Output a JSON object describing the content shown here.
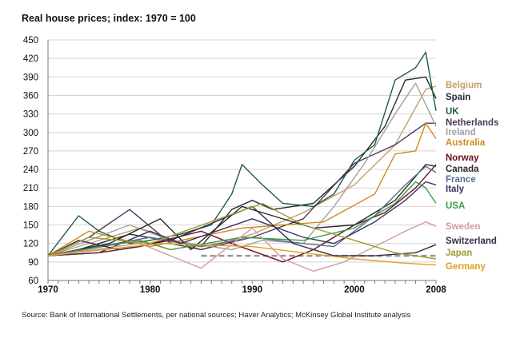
{
  "chart_data": {
    "type": "line",
    "title": "Real house prices; index: 1970 = 100",
    "source": "Source: Bank of International Settlements, per national sources; Haver Analytics; McKinsey Global Institute analysis",
    "xlim": [
      1970,
      2008
    ],
    "ylim": [
      60,
      450
    ],
    "yticks": [
      60,
      90,
      120,
      150,
      180,
      210,
      240,
      270,
      300,
      330,
      360,
      390,
      420,
      450
    ],
    "xticks": [
      1970,
      1980,
      1990,
      2000,
      2008
    ],
    "grid": true,
    "reference_line": {
      "value": 100,
      "style": "dashed",
      "color": "#999999"
    },
    "legend_placement": "right",
    "series": [
      {
        "name": "Belgium",
        "color": "#c4a06a",
        "points": [
          [
            1970,
            100
          ],
          [
            1979,
            145
          ],
          [
            1985,
            110
          ],
          [
            1990,
            135
          ],
          [
            1995,
            170
          ],
          [
            2000,
            215
          ],
          [
            2004,
            280
          ],
          [
            2007,
            370
          ],
          [
            2008,
            375
          ]
        ]
      },
      {
        "name": "Spain",
        "color": "#1f2d3a",
        "points": [
          [
            1970,
            100
          ],
          [
            1973,
            110
          ],
          [
            1978,
            135
          ],
          [
            1985,
            115
          ],
          [
            1988,
            175
          ],
          [
            1990,
            190
          ],
          [
            1992,
            175
          ],
          [
            1996,
            185
          ],
          [
            2000,
            245
          ],
          [
            2003,
            310
          ],
          [
            2005,
            385
          ],
          [
            2007,
            390
          ],
          [
            2008,
            355
          ]
        ]
      },
      {
        "name": "UK",
        "color": "#1e5c45",
        "points": [
          [
            1970,
            100
          ],
          [
            1973,
            165
          ],
          [
            1975,
            140
          ],
          [
            1978,
            120
          ],
          [
            1980,
            125
          ],
          [
            1983,
            135
          ],
          [
            1986,
            150
          ],
          [
            1988,
            200
          ],
          [
            1989,
            248
          ],
          [
            1991,
            215
          ],
          [
            1993,
            185
          ],
          [
            1996,
            180
          ],
          [
            1998,
            200
          ],
          [
            2000,
            255
          ],
          [
            2002,
            280
          ],
          [
            2004,
            385
          ],
          [
            2006,
            405
          ],
          [
            2007,
            430
          ],
          [
            2008,
            335
          ]
        ]
      },
      {
        "name": "Netherlands",
        "color": "#4b3a5c",
        "points": [
          [
            1970,
            100
          ],
          [
            1974,
            130
          ],
          [
            1978,
            175
          ],
          [
            1982,
            120
          ],
          [
            1985,
            110
          ],
          [
            1990,
            130
          ],
          [
            1995,
            160
          ],
          [
            2000,
            250
          ],
          [
            2002,
            265
          ],
          [
            2004,
            280
          ],
          [
            2007,
            315
          ],
          [
            2008,
            315
          ]
        ]
      },
      {
        "name": "Ireland",
        "color": "#a0a0a0",
        "points": [
          [
            1970,
            100
          ],
          [
            1978,
            150
          ],
          [
            1982,
            125
          ],
          [
            1988,
            110
          ],
          [
            1991,
            125
          ],
          [
            1995,
            120
          ],
          [
            1998,
            180
          ],
          [
            2001,
            250
          ],
          [
            2004,
            330
          ],
          [
            2006,
            380
          ],
          [
            2008,
            310
          ]
        ]
      },
      {
        "name": "Australia",
        "color": "#d08a1e",
        "points": [
          [
            1970,
            100
          ],
          [
            1974,
            140
          ],
          [
            1980,
            115
          ],
          [
            1989,
            145
          ],
          [
            1993,
            150
          ],
          [
            1997,
            155
          ],
          [
            2002,
            200
          ],
          [
            2004,
            265
          ],
          [
            2006,
            270
          ],
          [
            2007,
            315
          ],
          [
            2008,
            290
          ]
        ]
      },
      {
        "name": "Norway",
        "color": "#6b1020",
        "points": [
          [
            1970,
            100
          ],
          [
            1975,
            105
          ],
          [
            1979,
            115
          ],
          [
            1985,
            140
          ],
          [
            1988,
            120
          ],
          [
            1993,
            90
          ],
          [
            1996,
            110
          ],
          [
            2000,
            150
          ],
          [
            2003,
            170
          ],
          [
            2006,
            210
          ],
          [
            2008,
            248
          ]
        ]
      },
      {
        "name": "Canada",
        "color": "#2a2a2a",
        "points": [
          [
            1970,
            100
          ],
          [
            1976,
            120
          ],
          [
            1981,
            160
          ],
          [
            1984,
            110
          ],
          [
            1989,
            180
          ],
          [
            1992,
            165
          ],
          [
            1996,
            145
          ],
          [
            2000,
            150
          ],
          [
            2004,
            190
          ],
          [
            2007,
            248
          ],
          [
            2008,
            245
          ]
        ]
      },
      {
        "name": "France",
        "color": "#5a6e8a",
        "points": [
          [
            1970,
            100
          ],
          [
            1980,
            130
          ],
          [
            1985,
            115
          ],
          [
            1990,
            130
          ],
          [
            1995,
            120
          ],
          [
            1998,
            115
          ],
          [
            2002,
            165
          ],
          [
            2005,
            215
          ],
          [
            2007,
            245
          ],
          [
            2008,
            235
          ]
        ]
      },
      {
        "name": "Italy",
        "color": "#3f3060",
        "points": [
          [
            1970,
            100
          ],
          [
            1975,
            105
          ],
          [
            1980,
            140
          ],
          [
            1983,
            120
          ],
          [
            1990,
            160
          ],
          [
            1995,
            130
          ],
          [
            1998,
            120
          ],
          [
            2002,
            155
          ],
          [
            2005,
            190
          ],
          [
            2007,
            220
          ],
          [
            2008,
            215
          ]
        ]
      },
      {
        "name": "USA",
        "color": "#3f9a4a",
        "points": [
          [
            1970,
            100
          ],
          [
            1979,
            125
          ],
          [
            1982,
            110
          ],
          [
            1989,
            130
          ],
          [
            1995,
            125
          ],
          [
            2000,
            145
          ],
          [
            2004,
            185
          ],
          [
            2006,
            220
          ],
          [
            2007,
            210
          ],
          [
            2008,
            185
          ]
        ]
      },
      {
        "name": "Sweden",
        "color": "#d79a9a",
        "points": [
          [
            1970,
            100
          ],
          [
            1979,
            120
          ],
          [
            1985,
            80
          ],
          [
            1990,
            145
          ],
          [
            1993,
            95
          ],
          [
            1996,
            75
          ],
          [
            1999,
            90
          ],
          [
            2002,
            115
          ],
          [
            2005,
            140
          ],
          [
            2007,
            155
          ],
          [
            2008,
            148
          ]
        ]
      },
      {
        "name": "Switzerland",
        "color": "#3a2a4a",
        "points": [
          [
            1970,
            100
          ],
          [
            1973,
            125
          ],
          [
            1977,
            110
          ],
          [
            1982,
            125
          ],
          [
            1990,
            180
          ],
          [
            1994,
            120
          ],
          [
            1998,
            100
          ],
          [
            2002,
            100
          ],
          [
            2006,
            105
          ],
          [
            2008,
            118
          ]
        ]
      },
      {
        "name": "Japan",
        "color": "#a09a30",
        "points": [
          [
            1970,
            100
          ],
          [
            1974,
            130
          ],
          [
            1980,
            120
          ],
          [
            1991,
            185
          ],
          [
            1995,
            150
          ],
          [
            2000,
            125
          ],
          [
            2004,
            105
          ],
          [
            2008,
            95
          ]
        ]
      },
      {
        "name": "Germany",
        "color": "#e0a020",
        "points": [
          [
            1970,
            100
          ],
          [
            1981,
            120
          ],
          [
            1990,
            115
          ],
          [
            1995,
            105
          ],
          [
            2000,
            95
          ],
          [
            2005,
            88
          ],
          [
            2008,
            85
          ]
        ]
      }
    ]
  }
}
